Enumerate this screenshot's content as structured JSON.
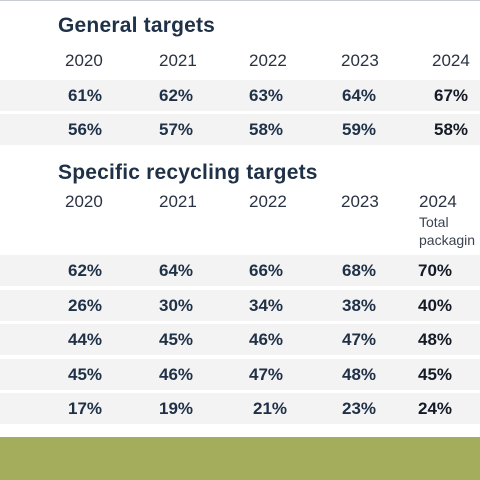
{
  "general": {
    "title": "General targets",
    "years": [
      "2020",
      "2021",
      "2022",
      "2023",
      "2024"
    ],
    "rows": [
      [
        "61%",
        "62%",
        "63%",
        "64%",
        "67%"
      ],
      [
        "56%",
        "57%",
        "58%",
        "59%",
        "58%"
      ]
    ]
  },
  "specific": {
    "title": "Specific recycling targets",
    "years": [
      "2020",
      "2021",
      "2022",
      "2023",
      "2024"
    ],
    "year_note_line1": "Total",
    "year_note_line2": "packagin",
    "rows": [
      [
        "62%",
        "64%",
        "66%",
        "68%",
        "70%"
      ],
      [
        "26%",
        "30%",
        "34%",
        "38%",
        "40%"
      ],
      [
        "44%",
        "45%",
        "46%",
        "47%",
        "48%"
      ],
      [
        "45%",
        "46%",
        "47%",
        "48%",
        "45%"
      ],
      [
        "17%",
        "19%",
        "21%",
        "23%",
        "24%"
      ]
    ]
  },
  "colors": {
    "heading": "#1f3147",
    "row_background": "#f3f3f3",
    "footer_band": "#a3ad5c"
  }
}
